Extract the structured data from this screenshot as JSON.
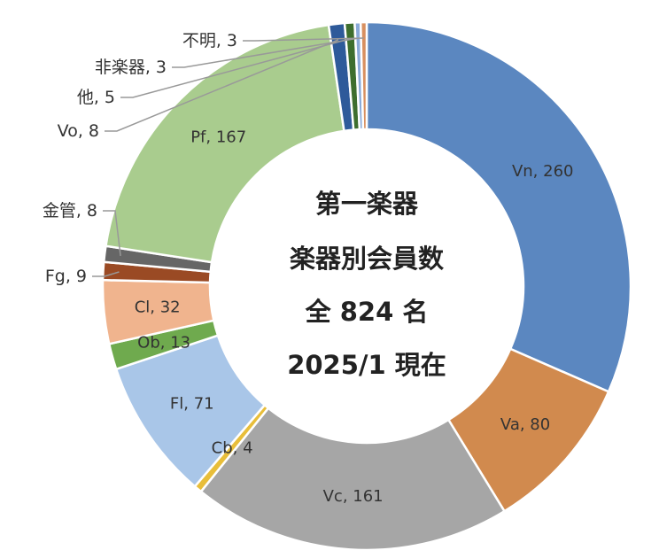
{
  "chart_data": {
    "type": "pie",
    "variant": "donut",
    "center_text": [
      "第一楽器",
      "楽器別会員数",
      "全 824 名",
      "2025/1 現在"
    ],
    "slices": [
      {
        "name": "Vn",
        "value": 260,
        "label": "Vn, 260",
        "color": "#5B87C0",
        "label_pos": "inside"
      },
      {
        "name": "Va",
        "value": 80,
        "label": "Va, 80",
        "color": "#D18A4E",
        "label_pos": "inside"
      },
      {
        "name": "Vc",
        "value": 161,
        "label": "Vc, 161",
        "color": "#A6A6A6",
        "label_pos": "inside"
      },
      {
        "name": "Cb",
        "value": 4,
        "label": "Cb, 4",
        "color": "#E8BE3A",
        "label_pos": "inside"
      },
      {
        "name": "Fl",
        "value": 71,
        "label": "Fl, 71",
        "color": "#A9C6E8",
        "label_pos": "inside"
      },
      {
        "name": "Ob",
        "value": 13,
        "label": "Ob, 13",
        "color": "#6FAA4E",
        "label_pos": "inside"
      },
      {
        "name": "Cl",
        "value": 32,
        "label": "Cl, 32",
        "color": "#F0B48E",
        "label_pos": "inside"
      },
      {
        "name": "Fg",
        "value": 9,
        "label": "Fg, 9",
        "color": "#9A4A24",
        "label_pos": "outside"
      },
      {
        "name": "金管",
        "value": 8,
        "label": "金管, 8",
        "color": "#666666",
        "label_pos": "outside"
      },
      {
        "name": "Pf",
        "value": 167,
        "label": "Pf, 167",
        "color": "#A9CC8E",
        "label_pos": "inside"
      },
      {
        "name": "Vo",
        "value": 8,
        "label": "Vo, 8",
        "color": "#2E5A9A",
        "label_pos": "outside"
      },
      {
        "name": "他",
        "value": 5,
        "label": "他, 5",
        "color": "#3E6E2E",
        "label_pos": "outside"
      },
      {
        "name": "非楽器",
        "value": 3,
        "label": "非楽器, 3",
        "color": "#8AAAD8",
        "label_pos": "outside"
      },
      {
        "name": "不明",
        "value": 3,
        "label": "不明, 3",
        "color": "#D89060",
        "label_pos": "outside"
      }
    ]
  }
}
